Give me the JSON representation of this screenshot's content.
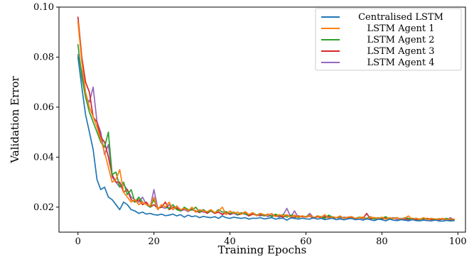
{
  "chart_data": {
    "type": "line",
    "title": "",
    "xlabel": "Training Epochs",
    "ylabel": "Validation Error",
    "xlim": [
      -5,
      102
    ],
    "ylim": [
      0.01,
      0.1
    ],
    "xticks": [
      0,
      20,
      40,
      60,
      80,
      100
    ],
    "yticks": [
      0.02,
      0.04,
      0.06,
      0.08,
      0.1
    ],
    "xtick_labels": [
      "0",
      "20",
      "40",
      "60",
      "80",
      "100"
    ],
    "ytick_labels": [
      "0.02",
      "0.04",
      "0.06",
      "0.08",
      "0.10"
    ],
    "grid": false,
    "legend_position": "top-right",
    "x": [
      0,
      1,
      2,
      3,
      4,
      5,
      6,
      7,
      8,
      9,
      10,
      11,
      12,
      13,
      14,
      15,
      16,
      17,
      18,
      19,
      20,
      21,
      22,
      23,
      24,
      25,
      26,
      27,
      28,
      29,
      30,
      31,
      32,
      33,
      34,
      35,
      36,
      37,
      38,
      39,
      40,
      41,
      42,
      43,
      44,
      45,
      46,
      47,
      48,
      49,
      50,
      51,
      52,
      53,
      54,
      55,
      56,
      57,
      58,
      59,
      60,
      61,
      62,
      63,
      64,
      65,
      66,
      67,
      68,
      69,
      70,
      71,
      72,
      73,
      74,
      75,
      76,
      77,
      78,
      79,
      80,
      81,
      82,
      83,
      84,
      85,
      86,
      87,
      88,
      89,
      90,
      91,
      92,
      93,
      94,
      95,
      96,
      97,
      98,
      99
    ],
    "series": [
      {
        "name": "Centralised LSTM",
        "color": "#1f77b4",
        "values": [
          0.08,
          0.068,
          0.057,
          0.05,
          0.043,
          0.031,
          0.027,
          0.028,
          0.024,
          0.023,
          0.021,
          0.019,
          0.022,
          0.021,
          0.019,
          0.0185,
          0.0175,
          0.018,
          0.0172,
          0.0175,
          0.017,
          0.0168,
          0.0172,
          0.0166,
          0.0168,
          0.0172,
          0.0165,
          0.017,
          0.016,
          0.0168,
          0.0162,
          0.0165,
          0.0158,
          0.0163,
          0.016,
          0.0158,
          0.0162,
          0.0155,
          0.0165,
          0.0158,
          0.0155,
          0.016,
          0.0157,
          0.0155,
          0.0158,
          0.0152,
          0.0156,
          0.0155,
          0.0158,
          0.0153,
          0.0155,
          0.0158,
          0.0152,
          0.0155,
          0.0156,
          0.0148,
          0.0157,
          0.0155,
          0.0152,
          0.0156,
          0.0153,
          0.0152,
          0.0158,
          0.0152,
          0.0155,
          0.015,
          0.0153,
          0.0156,
          0.015,
          0.0153,
          0.0149,
          0.0153,
          0.0155,
          0.015,
          0.0152,
          0.0148,
          0.0153,
          0.015,
          0.0146,
          0.0152,
          0.015,
          0.0145,
          0.0152,
          0.0148,
          0.0146,
          0.015,
          0.0148,
          0.0145,
          0.015,
          0.0146,
          0.0145,
          0.0148,
          0.0146,
          0.0145,
          0.0148,
          0.0145,
          0.0144,
          0.0147,
          0.0145,
          0.0146
        ]
      },
      {
        "name": "LSTM Agent 1",
        "color": "#ff7f0e",
        "values": [
          0.094,
          0.078,
          0.066,
          0.06,
          0.056,
          0.052,
          0.047,
          0.042,
          0.036,
          0.03,
          0.031,
          0.035,
          0.026,
          0.024,
          0.022,
          0.023,
          0.021,
          0.022,
          0.021,
          0.0205,
          0.024,
          0.019,
          0.021,
          0.02,
          0.022,
          0.019,
          0.0205,
          0.019,
          0.0195,
          0.0185,
          0.02,
          0.018,
          0.019,
          0.0185,
          0.0182,
          0.019,
          0.0178,
          0.0185,
          0.02,
          0.017,
          0.0185,
          0.0175,
          0.018,
          0.0172,
          0.0182,
          0.017,
          0.0178,
          0.0165,
          0.0175,
          0.017,
          0.0168,
          0.0175,
          0.0162,
          0.017,
          0.0165,
          0.017,
          0.016,
          0.0168,
          0.016,
          0.0165,
          0.016,
          0.0168,
          0.0158,
          0.0165,
          0.016,
          0.017,
          0.0155,
          0.0162,
          0.0158,
          0.0165,
          0.0155,
          0.016,
          0.0162,
          0.0155,
          0.0158,
          0.016,
          0.0152,
          0.016,
          0.0158,
          0.0155,
          0.016,
          0.0152,
          0.0158,
          0.0154,
          0.0158,
          0.0152,
          0.0156,
          0.0165,
          0.015,
          0.0155,
          0.0152,
          0.0158,
          0.015,
          0.0155,
          0.0153,
          0.0152,
          0.0155,
          0.015,
          0.0153,
          0.0152
        ]
      },
      {
        "name": "LSTM Agent 2",
        "color": "#2ca02c",
        "values": [
          0.085,
          0.072,
          0.064,
          0.058,
          0.054,
          0.05,
          0.046,
          0.044,
          0.05,
          0.033,
          0.034,
          0.028,
          0.03,
          0.025,
          0.027,
          0.022,
          0.024,
          0.022,
          0.021,
          0.02,
          0.023,
          0.019,
          0.021,
          0.02,
          0.0195,
          0.021,
          0.019,
          0.0185,
          0.02,
          0.019,
          0.0188,
          0.02,
          0.018,
          0.019,
          0.018,
          0.0185,
          0.0178,
          0.019,
          0.018,
          0.0182,
          0.0175,
          0.018,
          0.017,
          0.0178,
          0.0172,
          0.017,
          0.0178,
          0.0168,
          0.0175,
          0.0165,
          0.017,
          0.0162,
          0.0172,
          0.0165,
          0.017,
          0.016,
          0.0168,
          0.0165,
          0.0158,
          0.0165,
          0.0162,
          0.0168,
          0.0158,
          0.0165,
          0.0162,
          0.0155,
          0.0168,
          0.016,
          0.0158,
          0.0162,
          0.0155,
          0.016,
          0.0162,
          0.0155,
          0.016,
          0.0158,
          0.0155,
          0.0162,
          0.0152,
          0.0158,
          0.0155,
          0.0162,
          0.0152,
          0.0156,
          0.0158,
          0.0152,
          0.0158,
          0.0155,
          0.0152,
          0.0156,
          0.015,
          0.0155,
          0.0152,
          0.0155,
          0.015,
          0.0154,
          0.0152,
          0.0155,
          0.015,
          0.0152
        ]
      },
      {
        "name": "LSTM Agent 3",
        "color": "#d62728",
        "values": [
          0.096,
          0.08,
          0.07,
          0.066,
          0.056,
          0.054,
          0.048,
          0.046,
          0.04,
          0.033,
          0.03,
          0.03,
          0.026,
          0.027,
          0.023,
          0.022,
          0.023,
          0.021,
          0.022,
          0.02,
          0.021,
          0.0195,
          0.02,
          0.022,
          0.019,
          0.02,
          0.0195,
          0.0185,
          0.0195,
          0.0185,
          0.019,
          0.0185,
          0.0178,
          0.019,
          0.0175,
          0.0185,
          0.0175,
          0.018,
          0.017,
          0.0178,
          0.0172,
          0.018,
          0.017,
          0.0172,
          0.018,
          0.0165,
          0.0172,
          0.0168,
          0.017,
          0.0165,
          0.0172,
          0.0162,
          0.0168,
          0.0165,
          0.016,
          0.0168,
          0.0162,
          0.0158,
          0.0165,
          0.0162,
          0.016,
          0.0165,
          0.0155,
          0.0162,
          0.0158,
          0.016,
          0.0162,
          0.0155,
          0.0158,
          0.0162,
          0.0155,
          0.0158,
          0.016,
          0.0152,
          0.0158,
          0.0155,
          0.0175,
          0.0152,
          0.0158,
          0.0155,
          0.0152,
          0.0158,
          0.0152,
          0.0155,
          0.0158,
          0.015,
          0.0155,
          0.0152,
          0.0155,
          0.015,
          0.0153,
          0.0152,
          0.0155,
          0.015,
          0.0152,
          0.0148,
          0.0153,
          0.015,
          0.0148,
          0.015
        ]
      },
      {
        "name": "LSTM Agent 4",
        "color": "#9467bd",
        "values": [
          0.081,
          0.074,
          0.064,
          0.062,
          0.068,
          0.054,
          0.05,
          0.041,
          0.045,
          0.032,
          0.03,
          0.028,
          0.029,
          0.027,
          0.024,
          0.023,
          0.022,
          0.024,
          0.021,
          0.02,
          0.027,
          0.0195,
          0.02,
          0.0195,
          0.021,
          0.019,
          0.02,
          0.0185,
          0.019,
          0.0182,
          0.0195,
          0.018,
          0.0185,
          0.018,
          0.0178,
          0.0185,
          0.0175,
          0.018,
          0.0172,
          0.0178,
          0.017,
          0.0175,
          0.0168,
          0.0175,
          0.0172,
          0.0165,
          0.0172,
          0.0168,
          0.0165,
          0.017,
          0.0162,
          0.0168,
          0.0165,
          0.016,
          0.0168,
          0.0195,
          0.016,
          0.0185,
          0.0158,
          0.0165,
          0.016,
          0.0175,
          0.0158,
          0.0162,
          0.016,
          0.0165,
          0.0155,
          0.0162,
          0.0158,
          0.0155,
          0.016,
          0.0158,
          0.0162,
          0.0155,
          0.0158,
          0.0155,
          0.0152,
          0.0158,
          0.0155,
          0.0152,
          0.0158,
          0.0152,
          0.0155,
          0.0158,
          0.015,
          0.0155,
          0.0152,
          0.015,
          0.0155,
          0.0148,
          0.0152,
          0.0155,
          0.015,
          0.0152,
          0.0148,
          0.015,
          0.0152,
          0.0148,
          0.0158,
          0.015
        ]
      }
    ]
  }
}
